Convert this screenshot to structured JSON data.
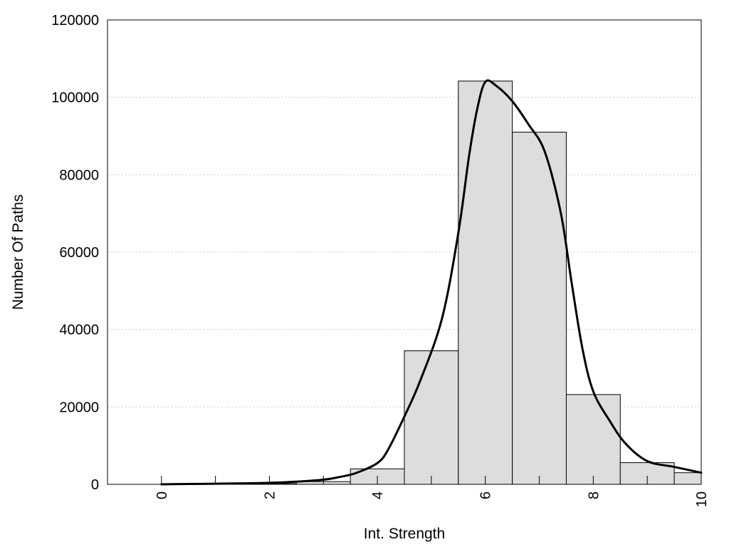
{
  "chart_data": {
    "type": "bar",
    "title": "",
    "xlabel": "Int. Strength",
    "ylabel": "Number Of Paths",
    "xlim": [
      -1,
      10
    ],
    "ylim": [
      0,
      120000
    ],
    "x_ticks": [
      0,
      2,
      4,
      6,
      8,
      10
    ],
    "y_ticks": [
      0,
      20000,
      40000,
      60000,
      80000,
      100000,
      120000
    ],
    "grid": "horizontal-dotted",
    "legend": "none",
    "bar_color": "#dddddd",
    "bar_edge_color": "#000000",
    "categories": [
      0,
      1,
      2,
      3,
      4,
      5,
      6,
      7,
      8,
      9,
      10
    ],
    "values": [
      0,
      100,
      200,
      700,
      4000,
      34500,
      104200,
      91000,
      23200,
      5600,
      3000
    ],
    "series": [
      {
        "type": "line",
        "color": "#000000",
        "x": [
          0,
          0.5,
          1,
          1.5,
          2,
          2.5,
          3,
          3.3,
          3.6,
          4,
          4.2,
          4.5,
          4.8,
          5.2,
          5.5,
          5.7,
          5.85,
          6,
          6.2,
          6.5,
          6.8,
          7.1,
          7.4,
          7.6,
          7.8,
          8,
          8.3,
          8.6,
          9,
          9.5,
          10
        ],
        "y": [
          0,
          100,
          150,
          250,
          400,
          700,
          1200,
          1900,
          2900,
          5500,
          9000,
          17500,
          27000,
          43000,
          65000,
          85000,
          97000,
          104000,
          103000,
          99000,
          93000,
          86000,
          70000,
          52000,
          35000,
          24000,
          16500,
          10500,
          6000,
          4500,
          3000
        ]
      }
    ]
  }
}
